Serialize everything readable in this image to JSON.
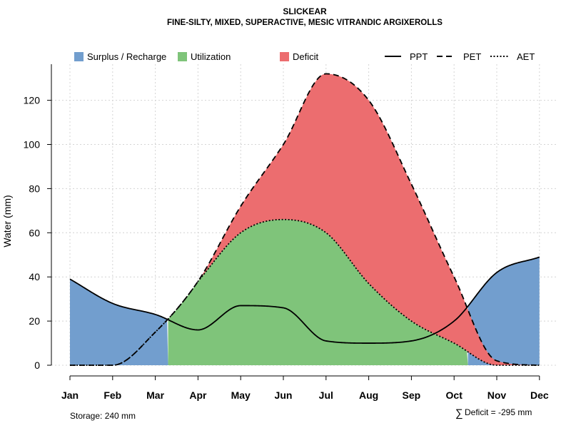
{
  "chart_data": {
    "type": "area",
    "title": "SLICKEAR",
    "subtitle": "FINE-SILTY, MIXED, SUPERACTIVE, MESIC VITRANDIC ARGIXEROLLS",
    "xlabel": "",
    "ylabel": "Water (mm)",
    "ylim": [
      0,
      135
    ],
    "yticks": [
      0,
      20,
      40,
      60,
      80,
      100,
      120
    ],
    "grid": true,
    "categories": [
      "Jan",
      "Feb",
      "Mar",
      "Apr",
      "May",
      "Jun",
      "Jul",
      "Aug",
      "Sep",
      "Oct",
      "Nov",
      "Dec"
    ],
    "series": [
      {
        "name": "PPT",
        "style": "solid",
        "values": [
          39,
          28,
          23,
          16,
          27,
          26,
          11,
          10,
          11,
          20,
          42,
          49
        ]
      },
      {
        "name": "PET",
        "style": "dashed",
        "values": [
          0,
          0,
          15,
          38,
          72,
          100,
          132,
          120,
          82,
          40,
          2,
          0
        ]
      },
      {
        "name": "AET",
        "style": "dotted",
        "values": [
          0,
          0,
          15,
          38,
          60,
          66,
          60,
          37,
          20,
          10,
          0,
          0
        ]
      }
    ],
    "areas": [
      {
        "name": "Surplus / Recharge",
        "color": "#729ECE"
      },
      {
        "name": "Utilization",
        "color": "#7FC47A"
      },
      {
        "name": "Deficit",
        "color": "#EC6D6F"
      }
    ],
    "legend_placement": "top",
    "annotations": {
      "storage": "Storage: 240 mm",
      "deficit_symbol": "∑",
      "deficit": "Deficit = -295 mm"
    }
  }
}
